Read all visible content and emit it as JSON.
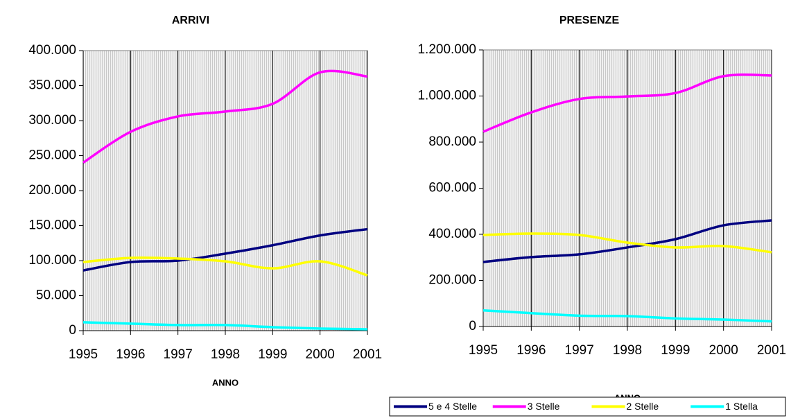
{
  "chart_data": [
    {
      "type": "line",
      "title": "ARRIVI",
      "x_label": "ANNO",
      "x": [
        1995,
        1996,
        1997,
        1998,
        1999,
        2000,
        2001
      ],
      "xlim": [
        1995,
        2001
      ],
      "xticks": [
        1995,
        1996,
        1997,
        1998,
        1999,
        2000,
        2001
      ],
      "ylim": [
        0,
        400000
      ],
      "yticks": [
        0,
        {
          "value": 50000,
          "label": "50.000"
        },
        {
          "value": 100000,
          "label": "100.000"
        },
        {
          "value": 150000,
          "label": "150.000"
        },
        {
          "value": 200000,
          "label": "200.000"
        },
        {
          "value": 250000,
          "label": "250.000"
        },
        {
          "value": 300000,
          "label": "300.000"
        },
        {
          "value": 350000,
          "label": "350.000"
        },
        {
          "value": 400000,
          "label": "400.000"
        }
      ],
      "grid": "x",
      "series": [
        {
          "name": "5 e 4 Stelle",
          "color": "#000080",
          "values": [
            86000,
            98000,
            100000,
            110000,
            122000,
            136000,
            145000
          ]
        },
        {
          "name": "3 Stelle",
          "color": "#ff00ff",
          "values": [
            240000,
            284000,
            306000,
            313000,
            324000,
            369000,
            363000
          ]
        },
        {
          "name": "2 Stelle",
          "color": "#ffff00",
          "values": [
            98000,
            104000,
            103000,
            99000,
            89000,
            99000,
            79000
          ]
        },
        {
          "name": "1 Stella",
          "color": "#00ffff",
          "values": [
            12000,
            10000,
            8000,
            8000,
            5000,
            3000,
            2000
          ]
        }
      ]
    },
    {
      "type": "line",
      "title": "PRESENZE",
      "x_label": "ANNO",
      "x": [
        1995,
        1996,
        1997,
        1998,
        1999,
        2000,
        2001
      ],
      "xlim": [
        1995,
        2001
      ],
      "xticks": [
        1995,
        1996,
        1997,
        1998,
        1999,
        2000,
        2001
      ],
      "ylim": [
        0,
        1200000
      ],
      "yticks": [
        0,
        {
          "value": 200000,
          "label": "200.000"
        },
        {
          "value": 400000,
          "label": "400.000"
        },
        {
          "value": 600000,
          "label": "600.000"
        },
        {
          "value": 800000,
          "label": "800.000"
        },
        {
          "value": 1000000,
          "label": "1.000.000"
        },
        {
          "value": 1200000,
          "label": "1.200.000"
        }
      ],
      "grid": "x",
      "legend": "bottom",
      "series": [
        {
          "name": "5 e 4 Stelle",
          "color": "#000080",
          "values": [
            280000,
            301000,
            313000,
            343000,
            379000,
            439000,
            460000
          ]
        },
        {
          "name": "3 Stelle",
          "color": "#ff00ff",
          "values": [
            845000,
            929000,
            987000,
            998000,
            1013000,
            1086000,
            1089000
          ]
        },
        {
          "name": "2 Stelle",
          "color": "#ffff00",
          "values": [
            397000,
            403000,
            397000,
            364000,
            343000,
            349000,
            322000
          ]
        },
        {
          "name": "1 Stella",
          "color": "#00ffff",
          "values": [
            70000,
            58000,
            47000,
            45000,
            35000,
            30000,
            22000
          ]
        }
      ]
    }
  ]
}
